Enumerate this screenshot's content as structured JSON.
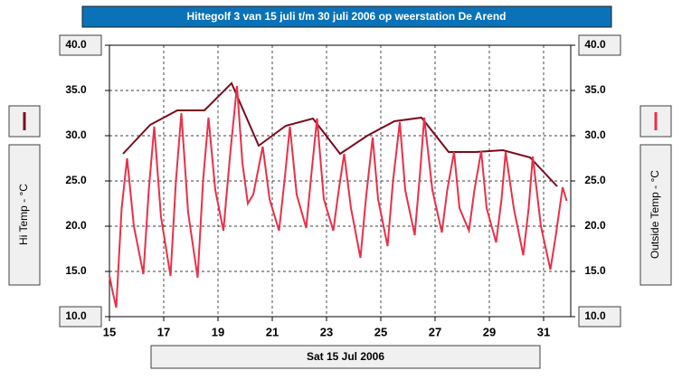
{
  "chart_data": {
    "type": "line",
    "title": "Hittegolf 3 van 15 juli t/m 30 juli 2006 op weerstation De Arend",
    "xlabel": "Sat 15 Jul 2006",
    "xlim": [
      15,
      32
    ],
    "xticks": [
      15,
      17,
      19,
      21,
      23,
      25,
      27,
      29,
      31
    ],
    "ylim": [
      10,
      40
    ],
    "yticks": [
      {
        "value": 10,
        "label": "10.0"
      },
      {
        "value": 15,
        "label": "15.0"
      },
      {
        "value": 20,
        "label": "20.0"
      },
      {
        "value": 25,
        "label": "25.0"
      },
      {
        "value": 30,
        "label": "30.0"
      },
      {
        "value": 35,
        "label": "35.0"
      },
      {
        "value": 40,
        "label": "40.0"
      }
    ],
    "grid": true,
    "series": [
      {
        "name": "Hi Temp - °C",
        "color": "#7a0a1e",
        "side": "left",
        "x": [
          15.5,
          16.5,
          17.5,
          18.5,
          19.5,
          20.5,
          21.5,
          22.5,
          23.5,
          24.5,
          25.5,
          26.5,
          27.5,
          28.5,
          29.5,
          30.5,
          31.5
        ],
        "values": [
          28.0,
          31.2,
          32.8,
          32.8,
          35.8,
          28.9,
          31.1,
          31.9,
          28.0,
          30.0,
          31.6,
          32.0,
          28.2,
          28.2,
          28.4,
          27.6,
          24.4
        ]
      },
      {
        "name": "Outside Temp - °C",
        "color": "#e8304a",
        "side": "right",
        "x": [
          15.0,
          15.1,
          15.25,
          15.45,
          15.65,
          15.9,
          16.25,
          16.45,
          16.65,
          16.9,
          17.25,
          17.45,
          17.65,
          17.9,
          18.25,
          18.45,
          18.65,
          18.9,
          19.2,
          19.45,
          19.7,
          19.9,
          20.1,
          20.3,
          20.65,
          20.9,
          21.25,
          21.45,
          21.65,
          21.9,
          22.25,
          22.45,
          22.65,
          22.9,
          23.25,
          23.45,
          23.65,
          23.9,
          24.25,
          24.45,
          24.7,
          24.9,
          25.25,
          25.45,
          25.7,
          25.9,
          26.25,
          26.45,
          26.6,
          26.9,
          27.25,
          27.45,
          27.7,
          27.9,
          28.25,
          28.45,
          28.7,
          28.9,
          29.25,
          29.45,
          29.6,
          29.9,
          30.25,
          30.45,
          30.6,
          30.9,
          31.25,
          31.45,
          31.7,
          31.85
        ],
        "values": [
          14.5,
          13.0,
          11.0,
          22.0,
          27.5,
          20.0,
          14.7,
          24.0,
          31.0,
          21.0,
          14.5,
          25.0,
          32.5,
          21.5,
          14.3,
          25.0,
          32.0,
          24.0,
          19.5,
          28.0,
          35.5,
          27.0,
          22.5,
          23.5,
          28.8,
          23.0,
          19.5,
          25.0,
          31.0,
          23.5,
          19.8,
          26.0,
          31.9,
          23.0,
          19.5,
          24.0,
          28.0,
          22.0,
          16.5,
          23.0,
          29.8,
          23.0,
          17.8,
          25.0,
          31.5,
          24.0,
          19.0,
          26.0,
          32.0,
          24.0,
          19.3,
          24.0,
          28.2,
          22.0,
          19.5,
          24.0,
          28.3,
          22.0,
          18.2,
          23.0,
          28.2,
          22.0,
          16.8,
          22.0,
          27.7,
          20.0,
          15.2,
          19.0,
          24.3,
          22.8
        ]
      }
    ]
  }
}
